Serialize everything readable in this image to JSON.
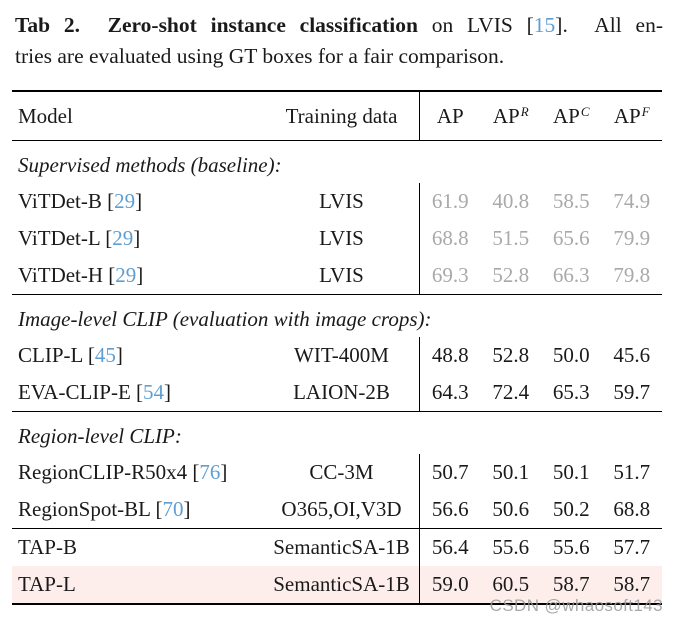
{
  "caption": {
    "lead_bold": "Tab 2.  Zero-shot instance classification",
    "mid": " on LVIS [",
    "cite": "15",
    "after_cite": "].  All en-",
    "line2": "tries are evaluated using GT boxes for a fair comparison."
  },
  "tokens": {
    "cite_open": "[",
    "cite_close": "]",
    "space": " "
  },
  "colors": {
    "citation_blue": "#5f9ed3",
    "muted_gray": "#a9a9a9",
    "highlight_pink": "#fdeeec",
    "rule_black": "#000000"
  },
  "table": {
    "columns": [
      {
        "key": "model",
        "label": "Model",
        "sup": ""
      },
      {
        "key": "training-data",
        "label": "Training data",
        "sup": ""
      },
      {
        "key": "ap",
        "label": "AP",
        "sup": ""
      },
      {
        "key": "ap-r",
        "label": "AP",
        "sup": "R"
      },
      {
        "key": "ap-c",
        "label": "AP",
        "sup": "C"
      },
      {
        "key": "ap-f",
        "label": "AP",
        "sup": "F"
      }
    ],
    "sections": [
      {
        "label": "Supervised methods (baseline):",
        "rows": [
          {
            "model": "ViTDet-B",
            "cite": "29",
            "training": "LVIS",
            "values": [
              "61.9",
              "40.8",
              "58.5",
              "74.9"
            ],
            "muted": true,
            "highlight": false
          },
          {
            "model": "ViTDet-L",
            "cite": "29",
            "training": "LVIS",
            "values": [
              "68.8",
              "51.5",
              "65.6",
              "79.9"
            ],
            "muted": true,
            "highlight": false
          },
          {
            "model": "ViTDet-H",
            "cite": "29",
            "training": "LVIS",
            "values": [
              "69.3",
              "52.8",
              "66.3",
              "79.8"
            ],
            "muted": true,
            "highlight": false
          }
        ]
      },
      {
        "label": "Image-level CLIP (evaluation with image crops):",
        "rows": [
          {
            "model": "CLIP-L",
            "cite": "45",
            "training": "WIT-400M",
            "values": [
              "48.8",
              "52.8",
              "50.0",
              "45.6"
            ],
            "muted": false,
            "highlight": false
          },
          {
            "model": "EVA-CLIP-E",
            "cite": "54",
            "training": "LAION-2B",
            "values": [
              "64.3",
              "72.4",
              "65.3",
              "59.7"
            ],
            "muted": false,
            "highlight": false
          }
        ]
      },
      {
        "label": "Region-level CLIP:",
        "rows": [
          {
            "model": "RegionCLIP-R50x4",
            "cite": "76",
            "training": "CC-3M",
            "values": [
              "50.7",
              "50.1",
              "50.1",
              "51.7"
            ],
            "muted": false,
            "highlight": false
          },
          {
            "model": "RegionSpot-BL",
            "cite": "70",
            "training": "O365,OI,V3D",
            "values": [
              "56.6",
              "50.6",
              "50.2",
              "68.8"
            ],
            "muted": false,
            "highlight": false
          }
        ]
      },
      {
        "label": null,
        "rows": [
          {
            "model": "TAP-B",
            "cite": null,
            "training": "SemanticSA-1B",
            "values": [
              "56.4",
              "55.6",
              "55.6",
              "57.7"
            ],
            "muted": false,
            "highlight": false
          },
          {
            "model": "TAP-L",
            "cite": null,
            "training": "SemanticSA-1B",
            "values": [
              "59.0",
              "60.5",
              "58.7",
              "58.7"
            ],
            "muted": false,
            "highlight": true
          }
        ]
      }
    ]
  },
  "watermark": "CSDN @whaosoft143"
}
